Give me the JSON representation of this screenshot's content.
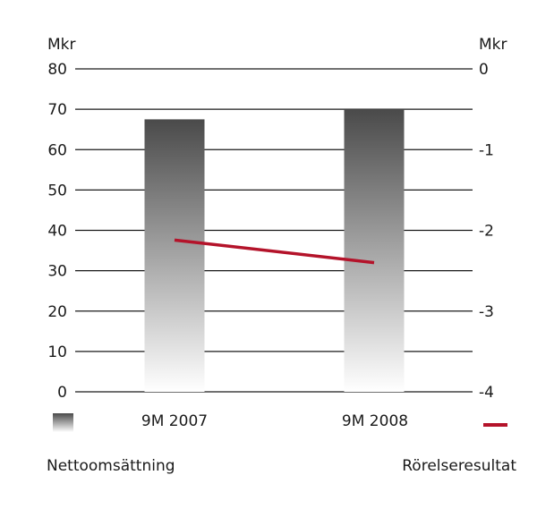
{
  "chart_data": {
    "type": "bar",
    "categories": [
      "9M 2007",
      "9M 2008"
    ],
    "series": [
      {
        "name": "Nettoomsättning",
        "type": "bar",
        "axis": "left",
        "values": [
          67.5,
          70
        ]
      },
      {
        "name": "Rörelseresultat",
        "type": "line",
        "axis": "right",
        "values": [
          -2.12,
          -2.4
        ]
      }
    ],
    "y_left": {
      "unit": "Mkr",
      "ylim": [
        0,
        80
      ],
      "ticks": [
        0,
        10,
        20,
        30,
        40,
        50,
        60,
        70,
        80
      ]
    },
    "y_right": {
      "unit": "Mkr",
      "ylim": [
        -4,
        0
      ],
      "ticks": [
        0,
        -1,
        -2,
        -3,
        -4
      ],
      "tick_labels": [
        "0",
        "-1",
        "-2",
        "-3",
        "-4"
      ]
    },
    "grid": true,
    "legend": {
      "placement": "bottom"
    },
    "colors": {
      "bar_top": "#4a4a4a",
      "bar_bottom": "#ffffff",
      "line": "#b4132a",
      "grid": "#1a1a1a"
    }
  }
}
